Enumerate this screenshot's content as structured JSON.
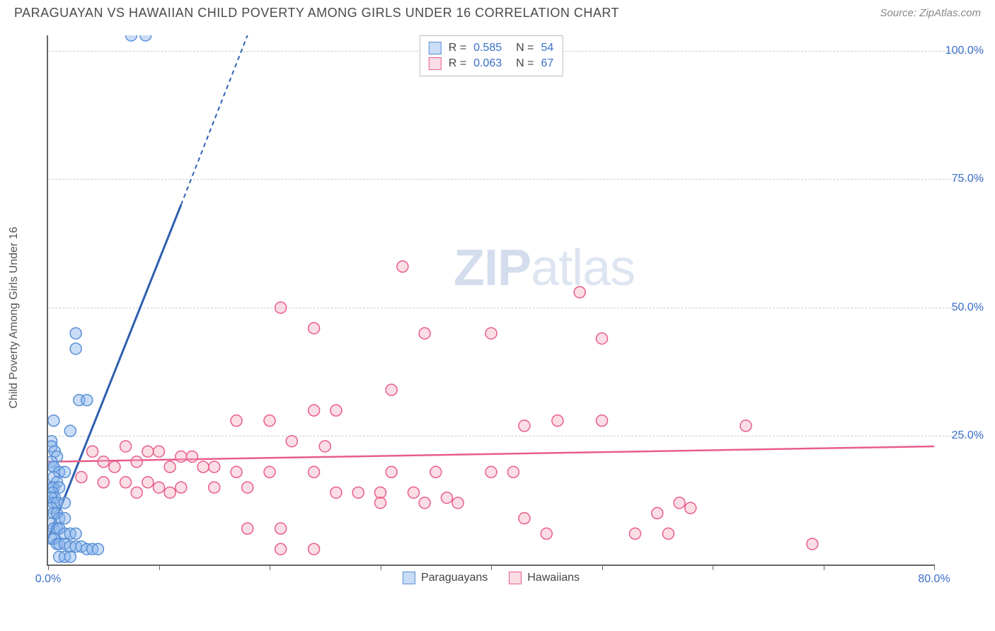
{
  "header": {
    "title": "PARAGUAYAN VS HAWAIIAN CHILD POVERTY AMONG GIRLS UNDER 16 CORRELATION CHART",
    "source": "Source: ZipAtlas.com"
  },
  "chart": {
    "type": "scatter",
    "y_axis_label": "Child Poverty Among Girls Under 16",
    "background_color": "#ffffff",
    "grid_color": "#cccccc",
    "axis_color": "#666666",
    "tick_label_color": "#3b6fc9",
    "xlim": [
      0,
      80
    ],
    "ylim": [
      0,
      103
    ],
    "x_ticks": [
      0,
      10,
      20,
      30,
      40,
      50,
      60,
      70,
      80
    ],
    "x_tick_labels": {
      "0": "0.0%",
      "80": "80.0%"
    },
    "y_ticks": [
      25,
      50,
      75,
      100
    ],
    "y_tick_labels": {
      "25": "25.0%",
      "50": "50.0%",
      "75": "75.0%",
      "100": "100.0%"
    },
    "marker_radius": 8,
    "marker_stroke_width": 1.5,
    "series": [
      {
        "name": "Paraguayans",
        "fill_color": "rgba(135,180,235,0.45)",
        "stroke_color": "#5a8fd6",
        "r_value": "0.585",
        "n_value": "54",
        "trend": {
          "x1": 0,
          "y1": 5,
          "x2": 12,
          "y2": 70,
          "dash_x2": 18,
          "dash_y2": 103
        },
        "points": [
          [
            7.5,
            103
          ],
          [
            8.8,
            103
          ],
          [
            2.5,
            45
          ],
          [
            2.5,
            42
          ],
          [
            2.8,
            32
          ],
          [
            3.5,
            32
          ],
          [
            0.5,
            28
          ],
          [
            2.0,
            26
          ],
          [
            0.3,
            24
          ],
          [
            0.3,
            23
          ],
          [
            0.6,
            22
          ],
          [
            0.8,
            21
          ],
          [
            0.3,
            20
          ],
          [
            0.5,
            19
          ],
          [
            0.5,
            19
          ],
          [
            1.0,
            18
          ],
          [
            1.5,
            18
          ],
          [
            0.5,
            17
          ],
          [
            0.8,
            16
          ],
          [
            0.3,
            15
          ],
          [
            0.5,
            15
          ],
          [
            1.0,
            15
          ],
          [
            0.4,
            14
          ],
          [
            0.6,
            13
          ],
          [
            0.3,
            13
          ],
          [
            0.5,
            12
          ],
          [
            0.8,
            12
          ],
          [
            1.5,
            12
          ],
          [
            0.3,
            11
          ],
          [
            0.5,
            10
          ],
          [
            0.8,
            10
          ],
          [
            1.0,
            9
          ],
          [
            1.5,
            9
          ],
          [
            0.3,
            8
          ],
          [
            0.5,
            7
          ],
          [
            0.8,
            7
          ],
          [
            1.0,
            7
          ],
          [
            1.5,
            6
          ],
          [
            2.0,
            6
          ],
          [
            2.5,
            6
          ],
          [
            0.3,
            5
          ],
          [
            0.5,
            5
          ],
          [
            0.8,
            4
          ],
          [
            1.0,
            4
          ],
          [
            1.5,
            4
          ],
          [
            2.0,
            3.5
          ],
          [
            2.5,
            3.5
          ],
          [
            3.0,
            3.5
          ],
          [
            3.5,
            3
          ],
          [
            4.0,
            3
          ],
          [
            4.5,
            3
          ],
          [
            1.0,
            1.5
          ],
          [
            1.5,
            1.5
          ],
          [
            2.0,
            1.5
          ]
        ]
      },
      {
        "name": "Hawaiians",
        "fill_color": "rgba(245,170,190,0.4)",
        "stroke_color": "#e85d8a",
        "r_value": "0.063",
        "n_value": "67",
        "trend": {
          "x1": 0,
          "y1": 20,
          "x2": 80,
          "y2": 23
        },
        "points": [
          [
            32,
            58
          ],
          [
            48,
            53
          ],
          [
            21,
            50
          ],
          [
            24,
            46
          ],
          [
            34,
            45
          ],
          [
            40,
            45
          ],
          [
            50,
            44
          ],
          [
            31,
            34
          ],
          [
            24,
            30
          ],
          [
            26,
            30
          ],
          [
            17,
            28
          ],
          [
            20,
            28
          ],
          [
            46,
            28
          ],
          [
            50,
            28
          ],
          [
            43,
            27
          ],
          [
            63,
            27
          ],
          [
            22,
            24
          ],
          [
            25,
            23
          ],
          [
            7,
            23
          ],
          [
            4,
            22
          ],
          [
            9,
            22
          ],
          [
            10,
            22
          ],
          [
            12,
            21
          ],
          [
            13,
            21
          ],
          [
            5,
            20
          ],
          [
            8,
            20
          ],
          [
            6,
            19
          ],
          [
            11,
            19
          ],
          [
            14,
            19
          ],
          [
            15,
            19
          ],
          [
            17,
            18
          ],
          [
            20,
            18
          ],
          [
            24,
            18
          ],
          [
            31,
            18
          ],
          [
            35,
            18
          ],
          [
            40,
            18
          ],
          [
            42,
            18
          ],
          [
            3,
            17
          ],
          [
            5,
            16
          ],
          [
            7,
            16
          ],
          [
            9,
            16
          ],
          [
            10,
            15
          ],
          [
            12,
            15
          ],
          [
            15,
            15
          ],
          [
            18,
            15
          ],
          [
            8,
            14
          ],
          [
            11,
            14
          ],
          [
            26,
            14
          ],
          [
            28,
            14
          ],
          [
            30,
            14
          ],
          [
            33,
            14
          ],
          [
            36,
            13
          ],
          [
            30,
            12
          ],
          [
            34,
            12
          ],
          [
            37,
            12
          ],
          [
            57,
            12
          ],
          [
            58,
            11
          ],
          [
            55,
            10
          ],
          [
            43,
            9
          ],
          [
            21,
            7
          ],
          [
            18,
            7
          ],
          [
            45,
            6
          ],
          [
            53,
            6
          ],
          [
            56,
            6
          ],
          [
            69,
            4
          ],
          [
            24,
            3
          ],
          [
            21,
            3
          ]
        ]
      }
    ],
    "watermark": {
      "text1": "ZIP",
      "text2": "atlas"
    }
  },
  "legend_bottom": {
    "item1": "Paraguayans",
    "item2": "Hawaiians"
  }
}
